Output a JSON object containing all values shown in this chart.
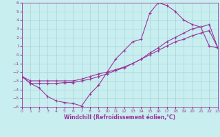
{
  "xlabel": "Windchill (Refroidissement éolien,°C)",
  "xlim": [
    0,
    23
  ],
  "ylim": [
    -6,
    6
  ],
  "xticks": [
    0,
    1,
    2,
    3,
    4,
    5,
    6,
    7,
    8,
    9,
    10,
    11,
    12,
    13,
    14,
    15,
    16,
    17,
    18,
    19,
    20,
    21,
    22,
    23
  ],
  "yticks": [
    -6,
    -5,
    -4,
    -3,
    -2,
    -1,
    0,
    1,
    2,
    3,
    4,
    5,
    6
  ],
  "bg_color": "#c8eef0",
  "grid_color": "#aad4d8",
  "line_color": "#993399",
  "line1_x": [
    0,
    1,
    2,
    3,
    4,
    5,
    6,
    7,
    8,
    9,
    10,
    11,
    12,
    13,
    14,
    15,
    16,
    17,
    18,
    19,
    20,
    21,
    22,
    23
  ],
  "line1_y": [
    -2.5,
    -3.3,
    -3.8,
    -4.8,
    -5.3,
    -5.5,
    -5.6,
    -5.9,
    -4.5,
    -3.5,
    -2.0,
    -0.5,
    0.5,
    1.5,
    1.8,
    4.8,
    6.0,
    5.7,
    5.0,
    4.0,
    3.5,
    3.2,
    1.0,
    0.8
  ],
  "line2_x": [
    0,
    1,
    2,
    3,
    4,
    5,
    6,
    7,
    8,
    9,
    10,
    11,
    12,
    13,
    14,
    15,
    16,
    17,
    18,
    19,
    20,
    21,
    22,
    23
  ],
  "line2_y": [
    -2.5,
    -3.3,
    -3.3,
    -3.3,
    -3.3,
    -3.2,
    -3.2,
    -3.0,
    -2.8,
    -2.5,
    -2.2,
    -1.8,
    -1.5,
    -1.0,
    -0.5,
    0.0,
    0.5,
    1.0,
    1.5,
    1.8,
    2.2,
    2.5,
    2.8,
    0.8
  ],
  "line3_x": [
    0,
    1,
    2,
    3,
    4,
    5,
    6,
    7,
    8,
    9,
    10,
    11,
    12,
    13,
    14,
    15,
    16,
    17,
    18,
    19,
    20,
    21,
    22,
    23
  ],
  "line3_y": [
    -2.5,
    -3.0,
    -3.0,
    -3.0,
    -3.0,
    -3.0,
    -3.0,
    -2.8,
    -2.5,
    -2.2,
    -2.0,
    -1.7,
    -1.4,
    -1.0,
    -0.5,
    0.2,
    0.8,
    1.5,
    2.0,
    2.5,
    3.0,
    3.2,
    3.5,
    0.8
  ]
}
